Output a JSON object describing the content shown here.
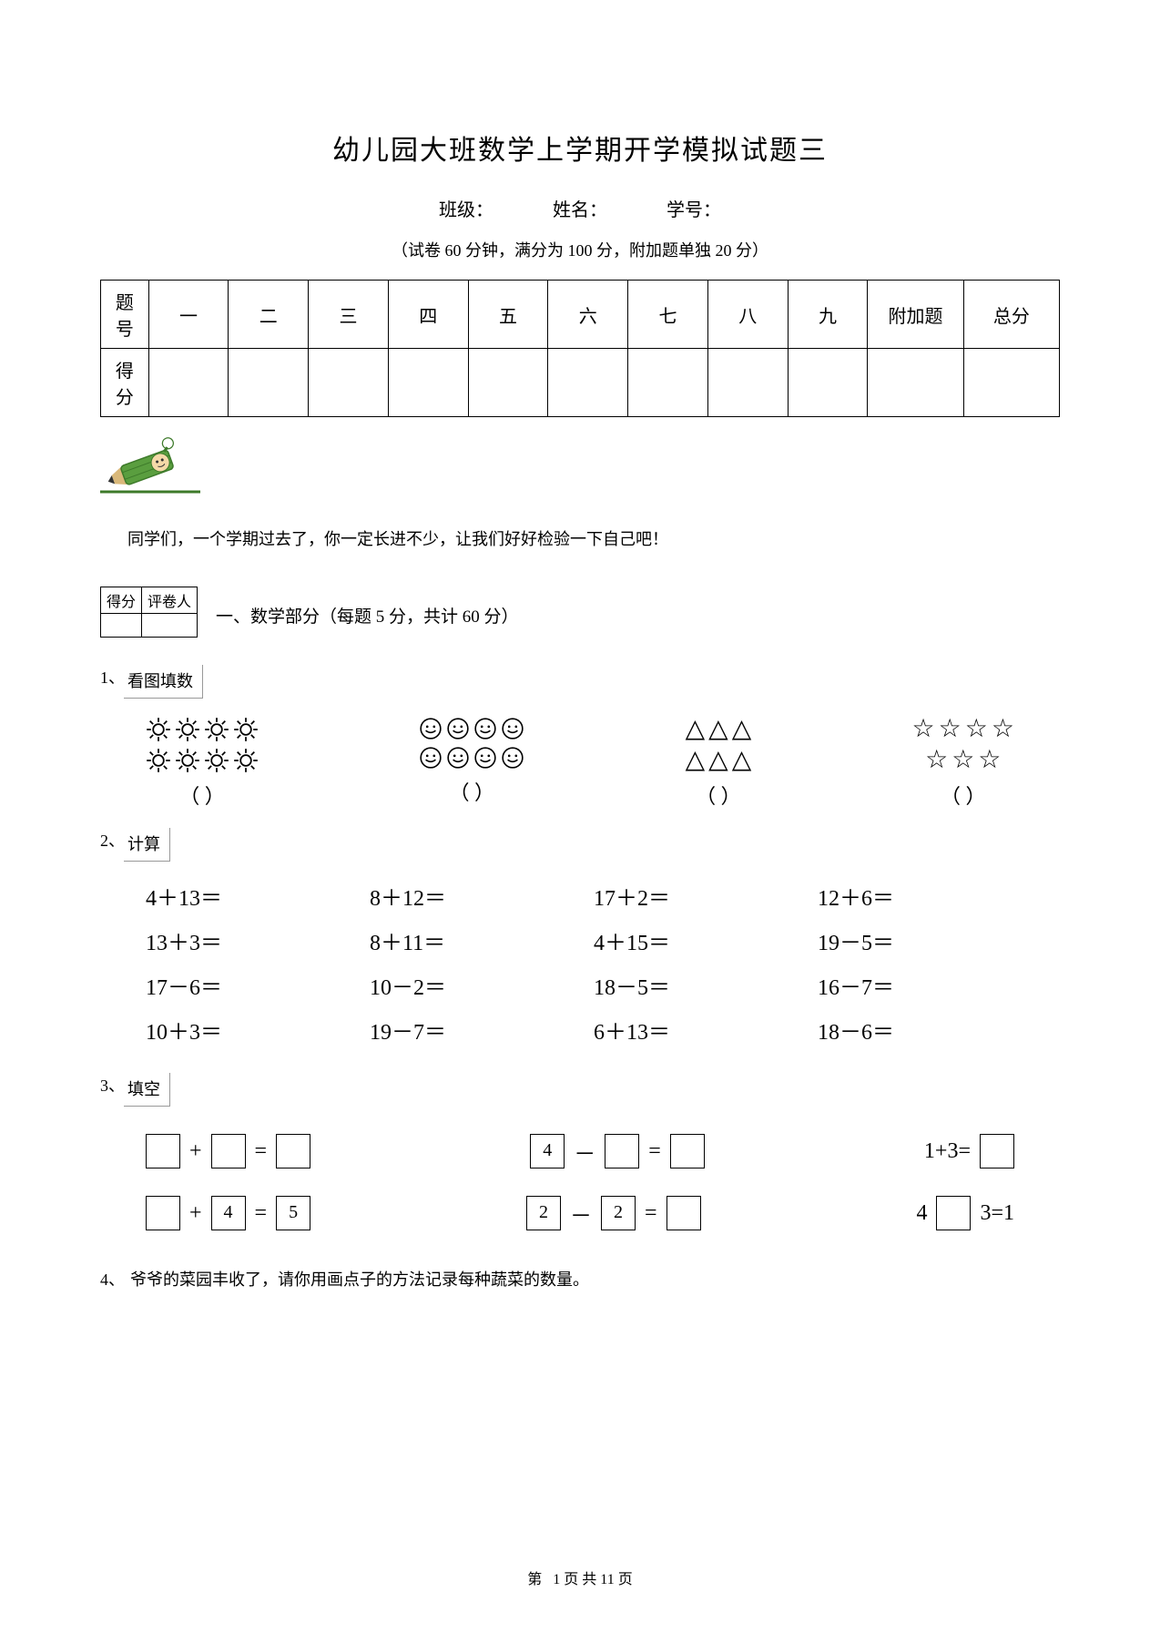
{
  "title": "幼儿园大班数学上学期开学模拟试题三",
  "info": {
    "class_label": "班级：",
    "name_label": "姓名：",
    "id_label": "学号："
  },
  "sub_note": "（试卷 60 分钟，满分为   100 分，附加题单独   20 分）",
  "score_table": {
    "row1_label": "题号",
    "row2_label": "得分",
    "cols": [
      "一",
      "二",
      "三",
      "四",
      "五",
      "六",
      "七",
      "八",
      "九",
      "附加题",
      "总分"
    ]
  },
  "intro": "同学们，一个学期过去了，你一定长进不少，让我们好好检验一下自己吧！",
  "mini_table": {
    "c1": "得分",
    "c2": "评卷人"
  },
  "section1_title": "一、数学部分（每题 5 分，共计 60 分）",
  "q1": {
    "num": "1、",
    "label": "看图填数"
  },
  "icon_groups": {
    "suns": {
      "rows": [
        4,
        4
      ],
      "paren": "（        ）"
    },
    "smiles": {
      "rows": [
        4,
        4
      ],
      "paren": "（        ）"
    },
    "tris": {
      "rows": [
        3,
        3
      ],
      "char": "△",
      "paren": "（     ）"
    },
    "stars": {
      "rows": [
        4,
        3
      ],
      "char": "☆",
      "paren": "（        ）"
    }
  },
  "q2": {
    "num": "2、",
    "label": "计算"
  },
  "calc": [
    "4＋13＝",
    "8＋12＝",
    "17＋2＝",
    "12＋6＝",
    "13＋3＝",
    "8＋11＝",
    "4＋15＝",
    "19－5＝",
    "17－6＝",
    "10－2＝",
    "18－5＝",
    "16－7＝",
    "10＋3＝",
    "19－7＝",
    "6＋13＝",
    "18－6＝"
  ],
  "q3": {
    "num": "3、",
    "label": "填空"
  },
  "fill": {
    "r1": {
      "a": {
        "b1": "",
        "op": "+",
        "b2": "",
        "eq": "=",
        "b3": ""
      },
      "b": {
        "b1": "4",
        "op": "－",
        "b2": "",
        "eq": "=",
        "b3": ""
      },
      "c": {
        "text_pre": "1+3=",
        "b1": ""
      }
    },
    "r2": {
      "a": {
        "b1": "",
        "op": "+",
        "b2": "4",
        "eq": "=",
        "b3": "5"
      },
      "b": {
        "b1": "2",
        "op": "－",
        "b2": "2",
        "eq": "=",
        "b3": ""
      },
      "c": {
        "pre": "4",
        "b1": "",
        "post": "3=1"
      }
    }
  },
  "q4": {
    "num": "4、",
    "text": "爷爷的菜园丰收了，请你用画点子的方法记录每种蔬菜的数量。"
  },
  "footer": {
    "pre": "第",
    "page": "1",
    "mid": "页 共",
    "total": "11",
    "suf": "页"
  },
  "colors": {
    "pencil_body": "#5a9e3f",
    "pencil_dark": "#3d7a2a",
    "pencil_tan": "#d9b87a",
    "pencil_lead": "#333333",
    "face": "#f4d9a8",
    "glove": "#ffffff",
    "underline": "#3d7a2a"
  }
}
